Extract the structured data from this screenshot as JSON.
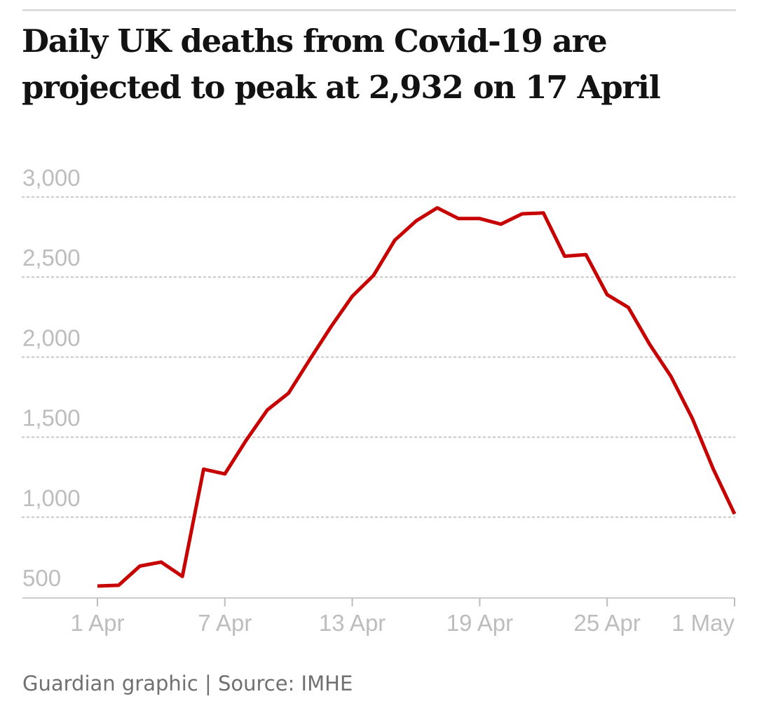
{
  "title": "Daily UK deaths from Covid-19 are projected to peak at 2,932 on 17 April",
  "source": "Guardian graphic | Source: IMHE",
  "colors": {
    "line": "#c70000",
    "gridline": "#d0d0d0",
    "axis": "#bdbdbd",
    "tick_label": "#bdbdbd",
    "title": "#121212",
    "source": "#707070"
  },
  "chart_data": {
    "type": "line",
    "title": "Daily UK deaths from Covid-19 are projected to peak at 2,932 on 17 April",
    "xlabel": "",
    "ylabel": "",
    "x_ticks": [
      "1 Apr",
      "7 Apr",
      "13 Apr",
      "19 Apr",
      "25 Apr",
      "1 May"
    ],
    "y_ticks": [
      "500",
      "1,000",
      "1,500",
      "2,000",
      "2,500",
      "3,000"
    ],
    "y_tick_values": [
      500,
      1000,
      1500,
      2000,
      2500,
      3000
    ],
    "ylim": [
      450,
      3150
    ],
    "xlim": [
      "1 Apr",
      "1 May"
    ],
    "grid": "horizontal dotted",
    "legend": "none",
    "series": [
      {
        "x": [
          "1 Apr",
          "2 Apr",
          "3 Apr",
          "4 Apr",
          "5 Apr",
          "6 Apr",
          "7 Apr",
          "8 Apr",
          "9 Apr",
          "10 Apr",
          "11 Apr",
          "12 Apr",
          "13 Apr",
          "14 Apr",
          "15 Apr",
          "16 Apr",
          "17 Apr",
          "18 Apr",
          "19 Apr",
          "20 Apr",
          "21 Apr",
          "22 Apr",
          "23 Apr",
          "24 Apr",
          "25 Apr",
          "26 Apr",
          "27 Apr",
          "28 Apr",
          "29 Apr",
          "30 Apr",
          "1 May"
        ],
        "values": [
          570,
          575,
          695,
          720,
          630,
          1300,
          1270,
          1480,
          1670,
          1775,
          1985,
          2190,
          2380,
          2510,
          2730,
          2850,
          2932,
          2865,
          2865,
          2830,
          2895,
          2900,
          2630,
          2640,
          2390,
          2310,
          2080,
          1880,
          1620,
          1300,
          1020
        ]
      }
    ]
  }
}
